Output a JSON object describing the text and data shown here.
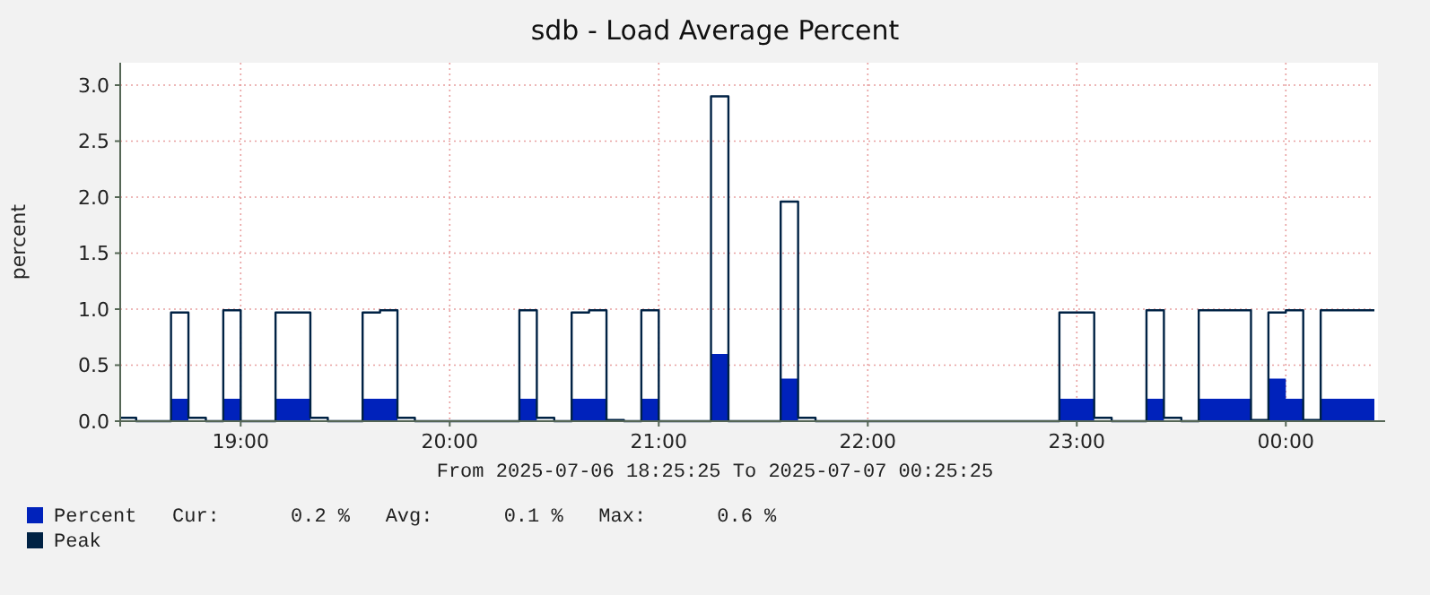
{
  "chart_data": {
    "type": "step",
    "title": "sdb - Load Average Percent",
    "ylabel": "percent",
    "xlabel": "From 2025-07-06 18:25:25 To 2025-07-07 00:25:25",
    "xlim": [
      18.4236,
      24.4236
    ],
    "xticks": [
      {
        "value": 19,
        "label": "19:00"
      },
      {
        "value": 20,
        "label": "20:00"
      },
      {
        "value": 21,
        "label": "21:00"
      },
      {
        "value": 22,
        "label": "22:00"
      },
      {
        "value": 23,
        "label": "23:00"
      },
      {
        "value": 24,
        "label": "00:00"
      }
    ],
    "ylim": [
      0,
      3.2
    ],
    "yticks": [
      {
        "value": 0,
        "label": "0.0"
      },
      {
        "value": 0.5,
        "label": "0.5"
      },
      {
        "value": 1,
        "label": "1.0"
      },
      {
        "value": 1.5,
        "label": "1.5"
      },
      {
        "value": 2,
        "label": "2.0"
      },
      {
        "value": 2.5,
        "label": "2.5"
      },
      {
        "value": 3,
        "label": "3.0"
      }
    ],
    "grid": true,
    "legend": "bottom left",
    "series": [
      {
        "name": "Percent",
        "type": "area",
        "color": "#0022bb",
        "x": [
          18.4236,
          18.6667,
          18.75,
          18.9167,
          19,
          19.1667,
          19.3333,
          19.5833,
          19.75,
          20.3333,
          20.4167,
          20.5833,
          20.75,
          20.9167,
          21,
          21.25,
          21.3333,
          21.5833,
          21.6667,
          22.9167,
          23.0833,
          23.3333,
          23.4167,
          23.5833,
          23.8333,
          23.9167,
          24,
          24.0833,
          24.1667,
          24.4236
        ],
        "values": [
          0,
          0.2,
          0,
          0.2,
          0,
          0.2,
          0,
          0.2,
          0,
          0.2,
          0,
          0.2,
          0,
          0.2,
          0,
          0.6,
          0,
          0.38,
          0,
          0.2,
          0,
          0.2,
          0,
          0.2,
          0,
          0.38,
          0.2,
          0,
          0.2,
          0.2
        ]
      },
      {
        "name": "Peak",
        "color": "#002244",
        "x": [
          18.4236,
          18.5,
          18.6667,
          18.75,
          18.8333,
          18.9167,
          19,
          19.1667,
          19.3333,
          19.4167,
          19.5833,
          19.6667,
          19.75,
          19.8333,
          20.3333,
          20.4167,
          20.5,
          20.5833,
          20.6667,
          20.75,
          20.8333,
          20.9167,
          21,
          21.25,
          21.3333,
          21.5833,
          21.6667,
          21.75,
          22.9167,
          23.0833,
          23.1667,
          23.3333,
          23.4167,
          23.5,
          23.5833,
          23.8333,
          23.9167,
          24,
          24.0833,
          24.1667,
          24.4236
        ],
        "values": [
          0.03,
          0,
          0.97,
          0.03,
          0,
          0.99,
          0,
          0.97,
          0.03,
          0,
          0.97,
          0.99,
          0.03,
          0,
          0.99,
          0.03,
          0,
          0.97,
          0.99,
          0.01,
          0,
          0.99,
          0,
          2.9,
          0,
          1.96,
          0.03,
          0,
          0.97,
          0.03,
          0,
          0.99,
          0.03,
          0,
          0.99,
          0.01,
          0.97,
          0.99,
          0.01,
          0.99,
          0.99
        ]
      }
    ],
    "annotations": [
      "Cur:      0.2 %   Avg:      0.1 %   Max:      0.6 %"
    ]
  }
}
